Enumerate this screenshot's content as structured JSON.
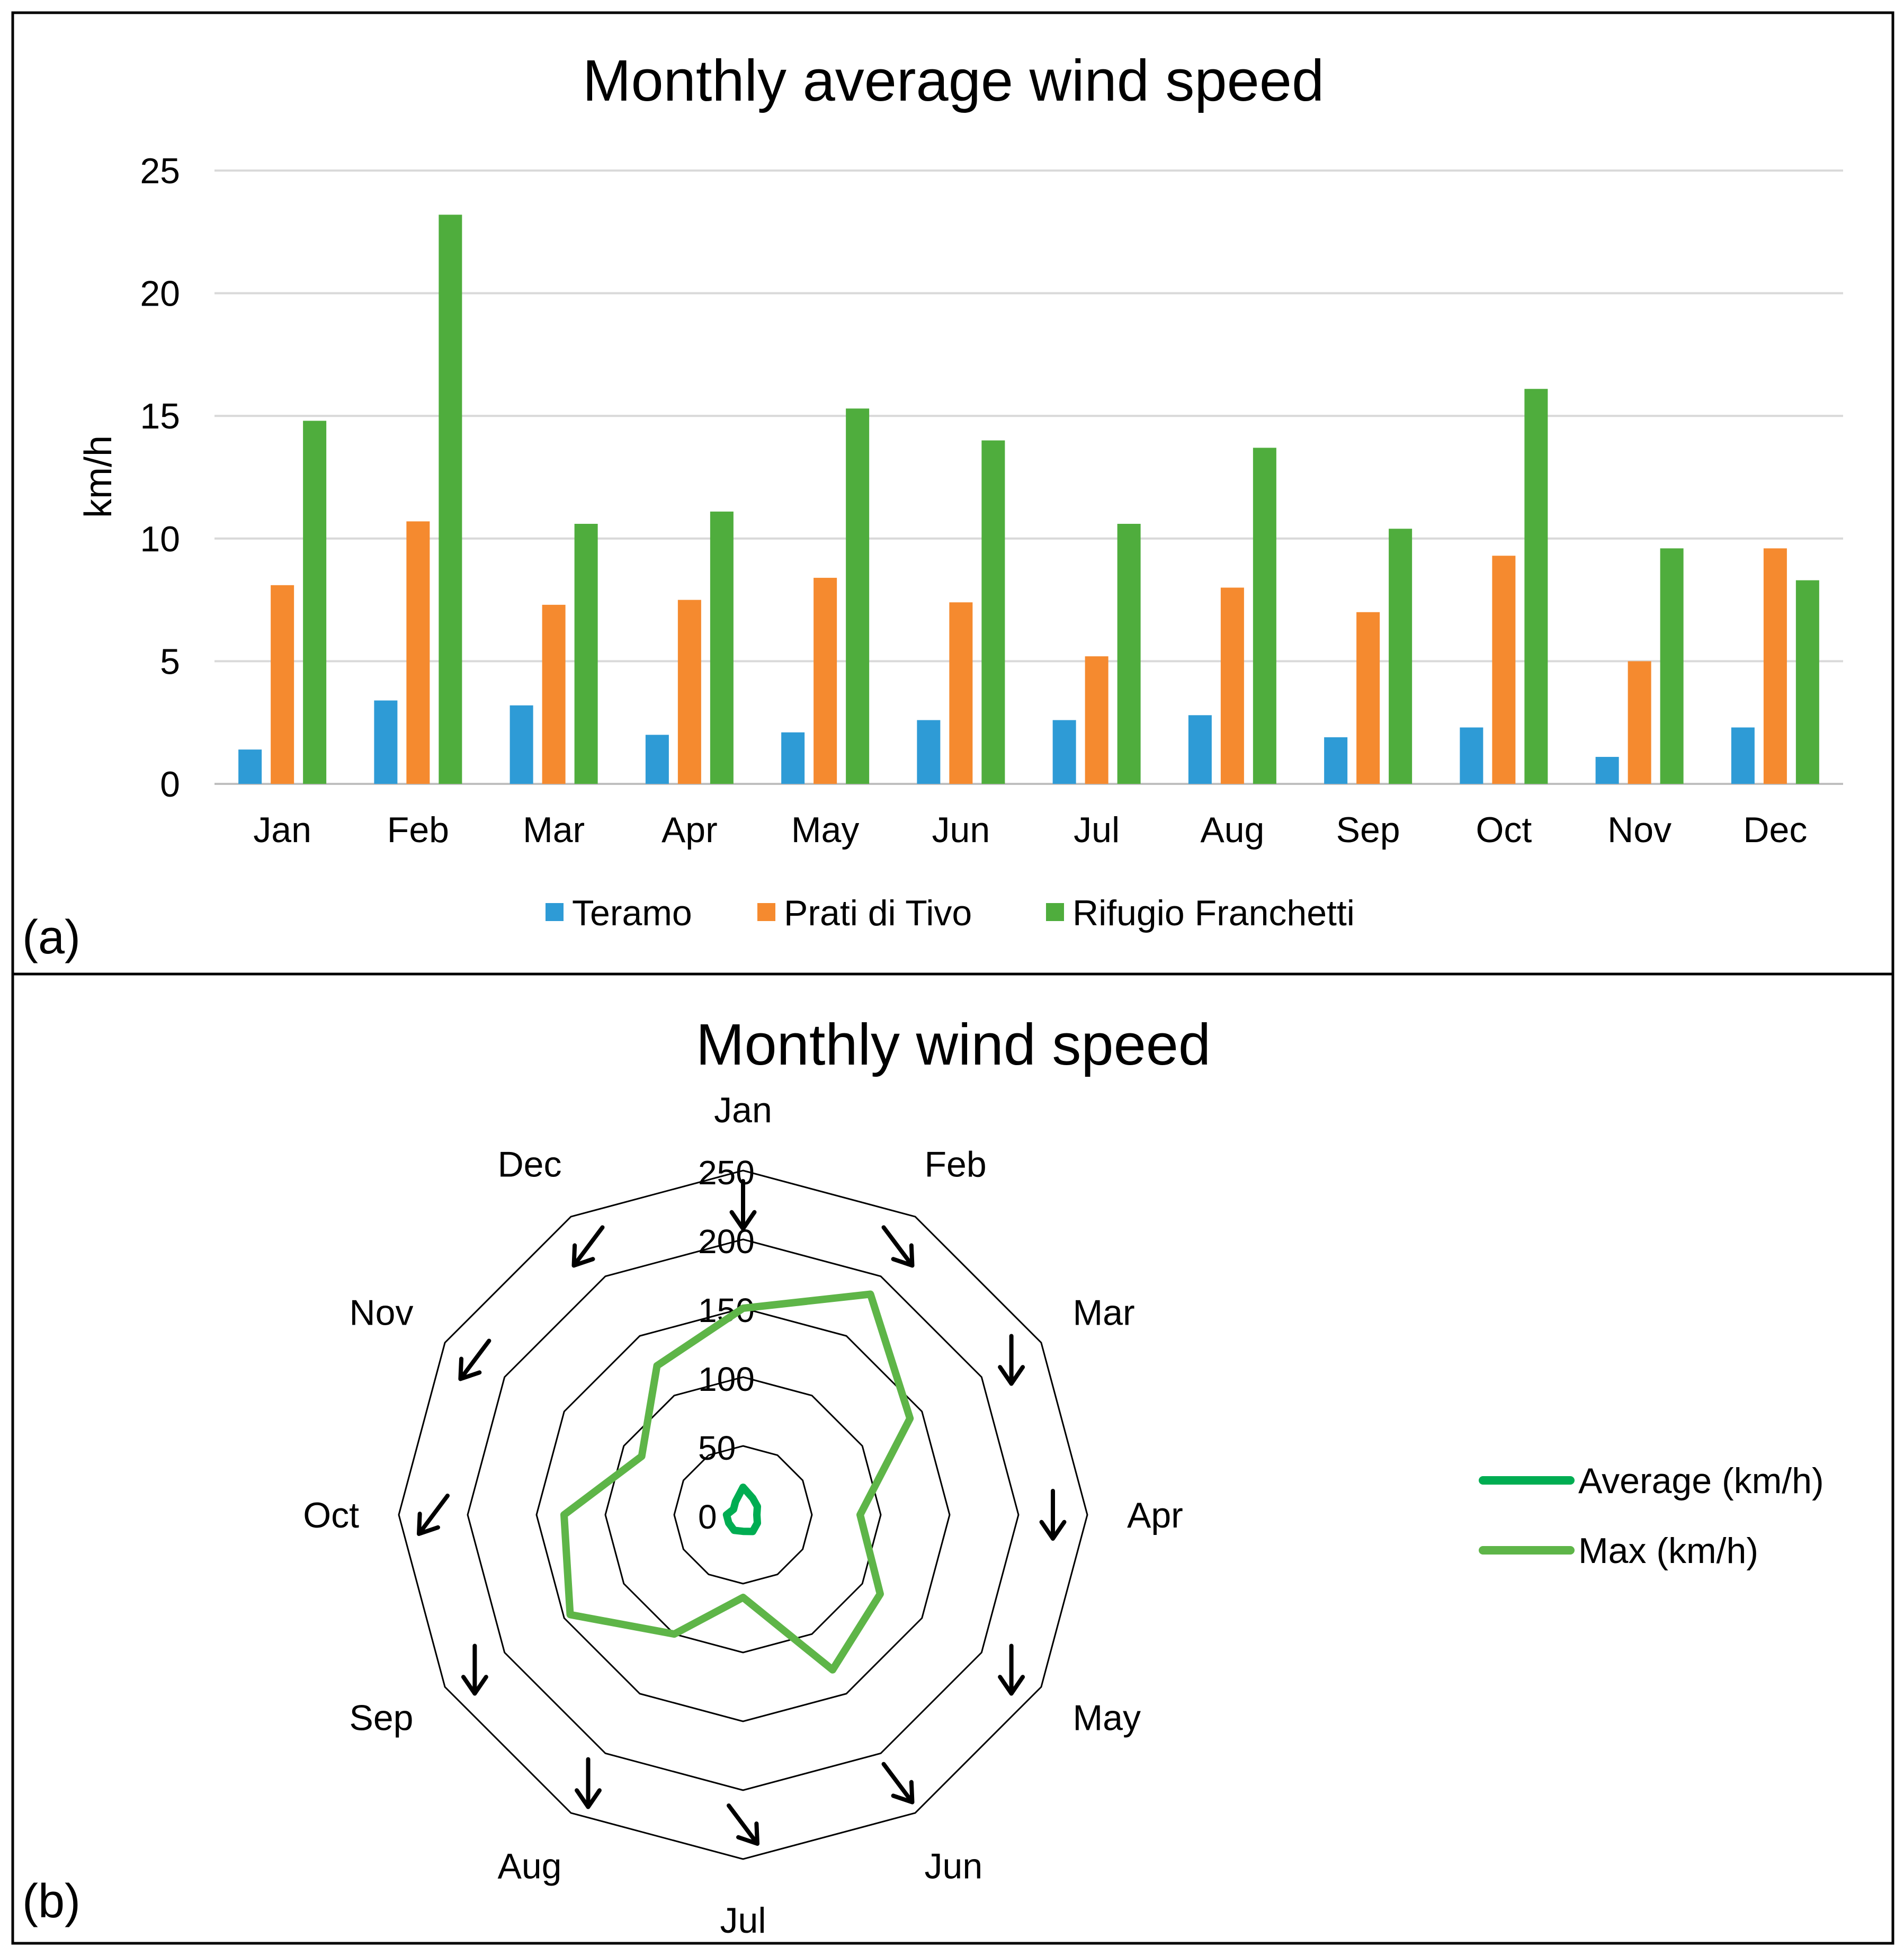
{
  "colors": {
    "teramo": "#2e9bd6",
    "prati": "#f58a2f",
    "rifugio": "#4fad3d",
    "avg": "#00ad52",
    "max": "#5eb548",
    "grid": "#d9d9d9",
    "border": "#000000"
  },
  "panel_a": {
    "label": "(a)"
  },
  "panel_b": {
    "label": "(b)"
  },
  "chart_data": [
    {
      "type": "bar",
      "title": "Monthly average wind speed",
      "xlabel": "",
      "ylabel": "km/h",
      "ylim": [
        0,
        25
      ],
      "yticks": [
        "0",
        "5",
        "10",
        "15",
        "20",
        "25"
      ],
      "categories": [
        "Jan",
        "Feb",
        "Mar",
        "Apr",
        "May",
        "Jun",
        "Jul",
        "Aug",
        "Sep",
        "Oct",
        "Nov",
        "Dec"
      ],
      "series": [
        {
          "name": "Teramo",
          "values": [
            1.4,
            3.4,
            3.2,
            2.0,
            2.1,
            2.6,
            2.6,
            2.8,
            1.9,
            2.3,
            1.1,
            2.3
          ]
        },
        {
          "name": "Prati di Tivo",
          "values": [
            8.1,
            10.7,
            7.3,
            7.5,
            8.4,
            7.4,
            5.2,
            8.0,
            7.0,
            9.3,
            5.0,
            9.6
          ]
        },
        {
          "name": "Rifugio Franchetti",
          "values": [
            14.8,
            23.2,
            10.6,
            11.1,
            15.3,
            14.0,
            10.6,
            13.7,
            10.4,
            16.1,
            9.6,
            8.3
          ]
        }
      ],
      "legend_position": "bottom"
    },
    {
      "type": "radar",
      "title": "Monthly wind speed",
      "categories": [
        "Jan",
        "Feb",
        "Mar",
        "Apr",
        "May",
        "Jun",
        "Jul",
        "Aug",
        "Sep",
        "Oct",
        "Nov",
        "Dec"
      ],
      "rlim": [
        0,
        250
      ],
      "rticks": [
        "0",
        "50",
        "100",
        "150",
        "200",
        "250"
      ],
      "series": [
        {
          "name": "Average (km/h)",
          "values": [
            20,
            14,
            12,
            10,
            12,
            14,
            12,
            13,
            12,
            12,
            8,
            11
          ]
        },
        {
          "name": "Max (km/h)",
          "values": [
            150,
            185,
            140,
            85,
            115,
            130,
            60,
            100,
            145,
            130,
            85,
            125
          ]
        }
      ],
      "wind_direction_arrows": [
        "down",
        "down-right",
        "down",
        "down",
        "down",
        "down-right",
        "down-right",
        "down",
        "down",
        "down-left",
        "down-left",
        "down-left"
      ],
      "legend_position": "right"
    }
  ]
}
